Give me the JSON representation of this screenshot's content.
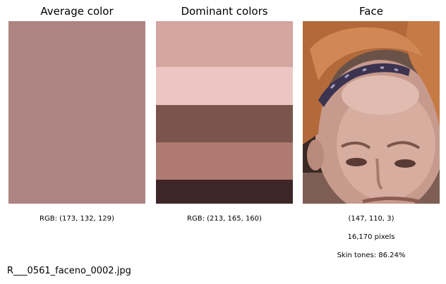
{
  "panels": {
    "average": {
      "title": "Average color",
      "color": "#ad8481",
      "caption": "RGB: (173, 132, 129)"
    },
    "dominant": {
      "title": "Dominant colors",
      "colors": [
        "#d5a5a0",
        "#ecc6c3",
        "#7b544e",
        "#ae7a72",
        "#3e2628"
      ],
      "proportions": [
        0.25,
        0.21,
        0.205,
        0.205,
        0.13
      ],
      "caption": "RGB: (213, 165, 160)"
    },
    "face": {
      "title": "Face",
      "color_text": "(147, 110, 3)",
      "pixels_text": "16,170 pixels",
      "skin_text": "Skin tones: 86.24%"
    }
  },
  "footer": {
    "filename": "R___0561_faceno_0002.jpg"
  }
}
